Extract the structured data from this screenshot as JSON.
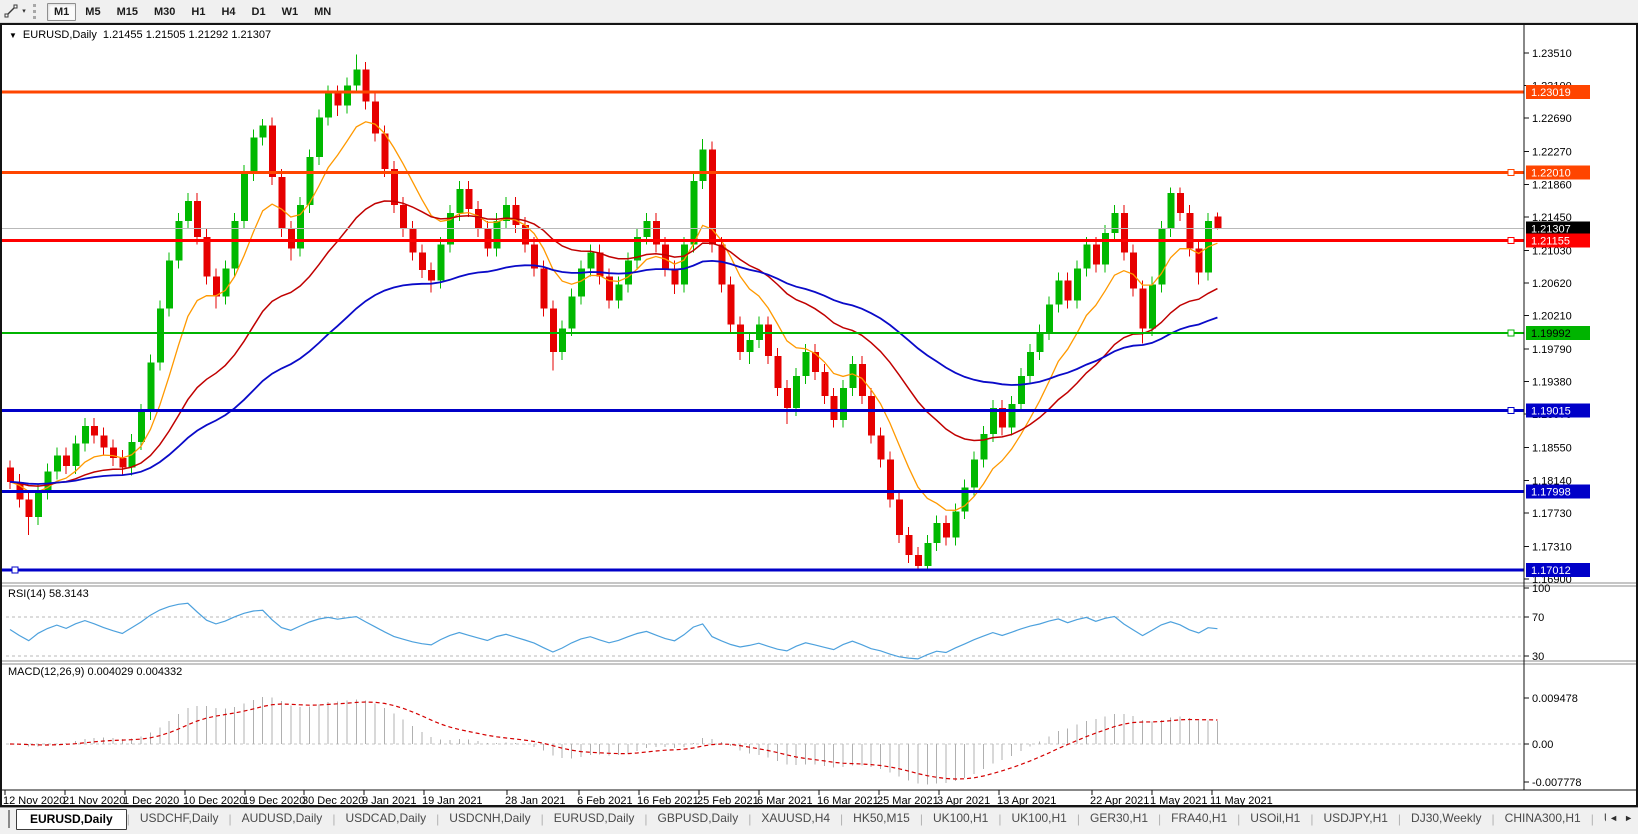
{
  "icons": {
    "symbol_menu": "▼",
    "toolbar_dropdown": "▾",
    "tab_scroll_left": "◄",
    "tab_scroll_right": "►"
  },
  "toolbar": {
    "timeframes": [
      "M1",
      "M5",
      "M15",
      "M30",
      "H1",
      "H4",
      "D1",
      "W1",
      "MN"
    ],
    "active_timeframe": "M1"
  },
  "chart_title": {
    "symbol": "EURUSD,Daily",
    "ohlc": "1.21455 1.21505 1.21292 1.21307"
  },
  "price_axis": {
    "ticks": [
      "1.23510",
      "1.23100",
      "1.22690",
      "1.22270",
      "1.21860",
      "1.21450",
      "1.21030",
      "1.20620",
      "1.20210",
      "1.19790",
      "1.19380",
      "1.18970",
      "1.18550",
      "1.18140",
      "1.17730",
      "1.17310",
      "1.16900"
    ]
  },
  "levels": [
    {
      "label": "1.23019",
      "price": 1.23019,
      "color": "#ff4500",
      "fg": "#ffffff",
      "width": 3,
      "handle": null
    },
    {
      "label": "1.22010",
      "price": 1.2201,
      "color": "#ff4500",
      "fg": "#ffffff",
      "width": 3,
      "handle": "right"
    },
    {
      "label": "1.21155",
      "price": 1.21155,
      "color": "#ff0000",
      "fg": "#ffffff",
      "width": 3,
      "handle": "right"
    },
    {
      "label": "1.19992",
      "price": 1.19992,
      "color": "#00b400",
      "fg": "#000000",
      "width": 2,
      "handle": "right"
    },
    {
      "label": "1.19015",
      "price": 1.19015,
      "color": "#0000c8",
      "fg": "#ffffff",
      "width": 3,
      "handle": "right"
    },
    {
      "label": "1.17998",
      "price": 1.17998,
      "color": "#0000c8",
      "fg": "#ffffff",
      "width": 3,
      "handle": null
    },
    {
      "label": "1.17012",
      "price": 1.17012,
      "color": "#0000c8",
      "fg": "#ffffff",
      "width": 3,
      "handle": "left"
    }
  ],
  "current_price": {
    "label": "1.21307",
    "price": 1.21307,
    "line_color": "#b9b9b9",
    "bg": "#000000",
    "fg": "#ffffff"
  },
  "moving_averages": [
    {
      "name": "ma-fast",
      "period": 9,
      "color": "#ff9900",
      "width": 1.3
    },
    {
      "name": "ma-mid",
      "period": 26,
      "color": "#c00000",
      "width": 1.5
    },
    {
      "name": "ma-slow",
      "period": 55,
      "color": "#0a0ac8",
      "width": 1.8
    }
  ],
  "rsi_panel": {
    "label": "RSI(14) 58.3143",
    "period": 14,
    "last_value": "58.3143",
    "line_color": "#4da1dd",
    "level_labels": [
      "100",
      "70",
      "30"
    ],
    "levels": [
      100,
      70,
      30
    ],
    "dashed_levels": [
      70,
      30
    ]
  },
  "macd_panel": {
    "label": "MACD(12,26,9) 0.004029 0.004332",
    "fast": 12,
    "slow": 26,
    "signal": 9,
    "values": [
      "0.004029",
      "0.004332"
    ],
    "hist_color": "#b0b0b0",
    "signal_color": "#d40000",
    "axis_labels": [
      "0.009478",
      "0.00",
      "-0.007778"
    ],
    "axis_values": [
      0.009478,
      0,
      -0.007778
    ]
  },
  "date_axis": {
    "labels": [
      "12 Nov 2020",
      "21 Nov 2020",
      "1 Dec 2020",
      "10 Dec 2020",
      "19 Dec 2020",
      "30 Dec 2020",
      "9 Jan 2021",
      "19 Jan 2021",
      "28 Jan 2021",
      "6 Feb 2021",
      "16 Feb 2021",
      "25 Feb 2021",
      "6 Mar 2021",
      "16 Mar 2021",
      "25 Mar 2021",
      "3 Apr 2021",
      "13 Apr 2021",
      "22 Apr 2021",
      "1 May 2021",
      "11 May 2021"
    ]
  },
  "tab_bar": {
    "active_index": 0,
    "tabs": [
      "EURUSD,Daily",
      "USDCHF,Daily",
      "AUDUSD,Daily",
      "USDCAD,Daily",
      "USDCNH,Daily",
      "EURUSD,Daily",
      "GBPUSD,Daily",
      "XAUUSD,H4",
      "HK50,M15",
      "UK100,H1",
      "UK100,H1",
      "GER30,H1",
      "FRA40,H1",
      "USOil,H1",
      "USDJPY,H1",
      "DJ30,Weekly",
      "CHINA300,H1",
      "USC"
    ]
  },
  "chart_data": {
    "type": "candlestick",
    "symbol": "EURUSD",
    "timeframe": "Daily",
    "last_ohlc": [
      1.21455,
      1.21505,
      1.21292,
      1.21307
    ],
    "bull_color": "#00b800",
    "bear_color": "#e60000",
    "y_range": [
      1.169,
      1.2351
    ],
    "candles": [
      [
        1.183,
        1.1839,
        1.1803,
        1.1812
      ],
      [
        1.1812,
        1.1822,
        1.178,
        1.179
      ],
      [
        1.179,
        1.1798,
        1.1745,
        1.1768
      ],
      [
        1.1768,
        1.181,
        1.1758,
        1.18
      ],
      [
        1.18,
        1.1835,
        1.179,
        1.1825
      ],
      [
        1.1825,
        1.1855,
        1.1815,
        1.1845
      ],
      [
        1.1845,
        1.1855,
        1.1822,
        1.1832
      ],
      [
        1.1832,
        1.187,
        1.1822,
        1.186
      ],
      [
        1.186,
        1.1892,
        1.185,
        1.1882
      ],
      [
        1.1882,
        1.1892,
        1.186,
        1.187
      ],
      [
        1.187,
        1.188,
        1.1845,
        1.1855
      ],
      [
        1.1855,
        1.1865,
        1.1832,
        1.1842
      ],
      [
        1.1842,
        1.1852,
        1.182,
        1.183
      ],
      [
        1.183,
        1.1872,
        1.182,
        1.1862
      ],
      [
        1.1862,
        1.191,
        1.1852,
        1.19
      ],
      [
        1.19,
        1.1972,
        1.189,
        1.1962
      ],
      [
        1.1962,
        1.204,
        1.1952,
        1.203
      ],
      [
        1.203,
        1.21,
        1.202,
        1.209
      ],
      [
        1.209,
        1.215,
        1.208,
        1.214
      ],
      [
        1.214,
        1.2175,
        1.213,
        1.2165
      ],
      [
        1.2165,
        1.2175,
        1.211,
        1.212
      ],
      [
        1.212,
        1.213,
        1.206,
        1.207
      ],
      [
        1.207,
        1.208,
        1.203,
        1.2045
      ],
      [
        1.2045,
        1.209,
        1.2035,
        1.208
      ],
      [
        1.208,
        1.215,
        1.207,
        1.214
      ],
      [
        1.214,
        1.221,
        1.213,
        1.22
      ],
      [
        1.22,
        1.2255,
        1.219,
        1.2245
      ],
      [
        1.2245,
        1.2268,
        1.2235,
        1.226
      ],
      [
        1.226,
        1.227,
        1.2185,
        1.2195
      ],
      [
        1.2195,
        1.2205,
        1.212,
        1.213
      ],
      [
        1.213,
        1.214,
        1.209,
        1.2105
      ],
      [
        1.2105,
        1.217,
        1.2095,
        1.216
      ],
      [
        1.216,
        1.223,
        1.215,
        1.222
      ],
      [
        1.222,
        1.228,
        1.221,
        1.227
      ],
      [
        1.227,
        1.231,
        1.226,
        1.23
      ],
      [
        1.23,
        1.231,
        1.2272,
        1.2285
      ],
      [
        1.2285,
        1.232,
        1.2275,
        1.231
      ],
      [
        1.231,
        1.2349,
        1.23,
        1.233
      ],
      [
        1.233,
        1.234,
        1.228,
        1.229
      ],
      [
        1.229,
        1.23,
        1.224,
        1.225
      ],
      [
        1.225,
        1.226,
        1.2195,
        1.2205
      ],
      [
        1.2205,
        1.2215,
        1.215,
        1.216
      ],
      [
        1.216,
        1.217,
        1.212,
        1.213
      ],
      [
        1.213,
        1.214,
        1.209,
        1.21
      ],
      [
        1.21,
        1.211,
        1.2068,
        1.2078
      ],
      [
        1.2078,
        1.2088,
        1.205,
        1.2065
      ],
      [
        1.2065,
        1.212,
        1.2055,
        1.211
      ],
      [
        1.211,
        1.216,
        1.21,
        1.215
      ],
      [
        1.215,
        1.219,
        1.214,
        1.218
      ],
      [
        1.218,
        1.219,
        1.2145,
        1.2155
      ],
      [
        1.2155,
        1.2165,
        1.212,
        1.213
      ],
      [
        1.213,
        1.214,
        1.2095,
        1.2105
      ],
      [
        1.2105,
        1.215,
        1.2095,
        1.214
      ],
      [
        1.214,
        1.217,
        1.213,
        1.216
      ],
      [
        1.216,
        1.217,
        1.2125,
        1.2135
      ],
      [
        1.2135,
        1.2145,
        1.21,
        1.211
      ],
      [
        1.211,
        1.212,
        1.207,
        1.208
      ],
      [
        1.208,
        1.209,
        1.202,
        1.203
      ],
      [
        1.203,
        1.204,
        1.1952,
        1.1975
      ],
      [
        1.1975,
        1.2015,
        1.1965,
        1.2005
      ],
      [
        1.2005,
        1.2055,
        1.1995,
        1.2045
      ],
      [
        1.2045,
        1.209,
        1.2035,
        1.208
      ],
      [
        1.208,
        1.211,
        1.207,
        1.21
      ],
      [
        1.21,
        1.211,
        1.206,
        1.207
      ],
      [
        1.207,
        1.208,
        1.203,
        1.204
      ],
      [
        1.204,
        1.207,
        1.203,
        1.206
      ],
      [
        1.206,
        1.21,
        1.205,
        1.209
      ],
      [
        1.209,
        1.213,
        1.208,
        1.212
      ],
      [
        1.212,
        1.215,
        1.211,
        1.214
      ],
      [
        1.214,
        1.215,
        1.21,
        1.211
      ],
      [
        1.211,
        1.212,
        1.207,
        1.208
      ],
      [
        1.208,
        1.209,
        1.2048,
        1.206
      ],
      [
        1.206,
        1.212,
        1.205,
        1.211
      ],
      [
        1.211,
        1.22,
        1.21,
        1.219
      ],
      [
        1.219,
        1.2243,
        1.218,
        1.223
      ],
      [
        1.223,
        1.224,
        1.21,
        1.211
      ],
      [
        1.211,
        1.212,
        1.205,
        1.206
      ],
      [
        1.206,
        1.207,
        1.2,
        1.201
      ],
      [
        1.201,
        1.202,
        1.1965,
        1.1975
      ],
      [
        1.1975,
        1.2,
        1.196,
        1.199
      ],
      [
        1.199,
        1.202,
        1.198,
        1.201
      ],
      [
        1.201,
        1.202,
        1.196,
        1.197
      ],
      [
        1.197,
        1.198,
        1.192,
        1.193
      ],
      [
        1.193,
        1.194,
        1.1885,
        1.1905
      ],
      [
        1.1905,
        1.1955,
        1.1895,
        1.1945
      ],
      [
        1.1945,
        1.1985,
        1.1935,
        1.1975
      ],
      [
        1.1975,
        1.1985,
        1.194,
        1.195
      ],
      [
        1.195,
        1.196,
        1.191,
        1.192
      ],
      [
        1.192,
        1.193,
        1.188,
        1.189
      ],
      [
        1.189,
        1.194,
        1.188,
        1.193
      ],
      [
        1.193,
        1.197,
        1.192,
        1.196
      ],
      [
        1.196,
        1.197,
        1.191,
        1.192
      ],
      [
        1.192,
        1.193,
        1.186,
        1.187
      ],
      [
        1.187,
        1.188,
        1.183,
        1.184
      ],
      [
        1.184,
        1.185,
        1.178,
        1.179
      ],
      [
        1.179,
        1.18,
        1.1735,
        1.1745
      ],
      [
        1.1745,
        1.1755,
        1.171,
        1.172
      ],
      [
        1.172,
        1.173,
        1.1702,
        1.1706
      ],
      [
        1.1706,
        1.1745,
        1.17,
        1.1735
      ],
      [
        1.1735,
        1.177,
        1.1725,
        1.176
      ],
      [
        1.176,
        1.177,
        1.1732,
        1.1742
      ],
      [
        1.1742,
        1.1785,
        1.1732,
        1.1775
      ],
      [
        1.1775,
        1.1815,
        1.1765,
        1.1805
      ],
      [
        1.1805,
        1.185,
        1.1795,
        1.184
      ],
      [
        1.184,
        1.1882,
        1.183,
        1.1872
      ],
      [
        1.1872,
        1.1915,
        1.1862,
        1.1905
      ],
      [
        1.1905,
        1.1915,
        1.187,
        1.188
      ],
      [
        1.188,
        1.192,
        1.187,
        1.191
      ],
      [
        1.191,
        1.1955,
        1.19,
        1.1945
      ],
      [
        1.1945,
        1.1985,
        1.1935,
        1.1975
      ],
      [
        1.1975,
        1.201,
        1.1965,
        1.2
      ],
      [
        1.2,
        1.2045,
        1.199,
        1.2035
      ],
      [
        1.2035,
        1.2075,
        1.2025,
        1.2065
      ],
      [
        1.2065,
        1.2075,
        1.203,
        1.204
      ],
      [
        1.204,
        1.209,
        1.203,
        1.208
      ],
      [
        1.208,
        1.212,
        1.207,
        1.211
      ],
      [
        1.211,
        1.212,
        1.2075,
        1.2085
      ],
      [
        1.2085,
        1.2135,
        1.2075,
        1.2125
      ],
      [
        1.2125,
        1.216,
        1.2115,
        1.215
      ],
      [
        1.215,
        1.216,
        1.209,
        1.21
      ],
      [
        1.21,
        1.211,
        1.2045,
        1.2055
      ],
      [
        1.2055,
        1.2065,
        1.1986,
        1.2005
      ],
      [
        1.2005,
        1.207,
        1.1995,
        1.206
      ],
      [
        1.206,
        1.214,
        1.205,
        1.213
      ],
      [
        1.213,
        1.2182,
        1.212,
        1.2175
      ],
      [
        1.2175,
        1.2182,
        1.214,
        1.215
      ],
      [
        1.215,
        1.216,
        1.2095,
        1.2105
      ],
      [
        1.2105,
        1.2115,
        1.206,
        1.2075
      ],
      [
        1.2075,
        1.215,
        1.2065,
        1.214
      ],
      [
        1.21455,
        1.21505,
        1.21292,
        1.21307
      ]
    ]
  }
}
